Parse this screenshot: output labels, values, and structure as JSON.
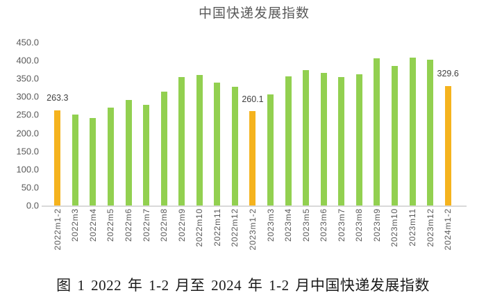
{
  "chart": {
    "title": "中国快递发展指数",
    "y_axis": {
      "tick_labels": [
        "450.0",
        "400.0",
        "350.0",
        "300.0",
        "250.0",
        "200.0",
        "150.0",
        "100.0",
        "50.0",
        "0.0"
      ]
    }
  },
  "chart_data": {
    "type": "bar",
    "title": "中国快递发展指数",
    "categories": [
      "2022m1-2",
      "2022m3",
      "2022m4",
      "2022m5",
      "2022m6",
      "2022m7",
      "2022m8",
      "2022m9",
      "2022m10",
      "2022m11",
      "2022m12",
      "2023m1-2",
      "2023m3",
      "2023m4",
      "2023m5",
      "2023m6",
      "2023m7",
      "2023m8",
      "2023m9",
      "2023m10",
      "2023m11",
      "2023m12",
      "2024m1-2"
    ],
    "values": [
      263.3,
      251.5,
      242.3,
      270.9,
      291.0,
      277.0,
      314.3,
      353.7,
      360.2,
      339.2,
      327.0,
      260.1,
      307.3,
      356.8,
      372.9,
      366.5,
      353.7,
      362.0,
      406.7,
      385.6,
      408.0,
      401.5,
      329.6
    ],
    "highlight_indices": [
      0,
      11,
      22
    ],
    "data_labels": [
      "263.3",
      "260.1",
      "329.6"
    ],
    "xlabel": "",
    "ylabel": "",
    "ylim": [
      0,
      450
    ],
    "ytick_step": 50,
    "grid": false,
    "legend": false
  },
  "style": {
    "bar_color": "#92D050",
    "highlight_bar_color": "#F5B31E",
    "axis_line_color": "#D9D9D9",
    "tick_label_color": "#595959",
    "data_label_color": "#404040",
    "title_color": "#595959"
  },
  "caption": "图 1 2022 年 1-2 月至 2024 年 1-2 月中国快递发展指数"
}
